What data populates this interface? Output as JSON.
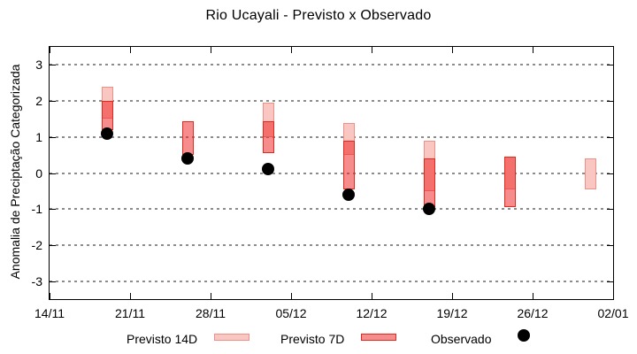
{
  "title": "Rio Ucayali - Previsto x Observado",
  "chart_data": {
    "type": "bar",
    "subtype": "floating-range-bars-with-scatter",
    "title": "Rio Ucayali - Previsto x Observado",
    "xlabel": "",
    "ylabel": "Anomalia de Preciptação Categorizada",
    "ylim": [
      -3.5,
      3.5
    ],
    "yticks": [
      3,
      2,
      1,
      0,
      -1,
      -2,
      -3
    ],
    "x_total_days": 49,
    "xticks": [
      {
        "day": 0,
        "label": "14/11"
      },
      {
        "day": 7,
        "label": "21/11"
      },
      {
        "day": 14,
        "label": "28/11"
      },
      {
        "day": 21,
        "label": "05/12"
      },
      {
        "day": 28,
        "label": "12/12"
      },
      {
        "day": 35,
        "label": "19/12"
      },
      {
        "day": 42,
        "label": "26/12"
      },
      {
        "day": 49,
        "label": "02/01"
      }
    ],
    "grid": {
      "horizontal": true,
      "style": "dotted",
      "color": "#8c8c8c"
    },
    "series": [
      {
        "name": "Previsto 14D",
        "type": "range-bar",
        "fill": "#f9c6c1",
        "border": "#ee9086",
        "points": [
          {
            "date": "19/11",
            "day": 5,
            "low": 1.5,
            "high": 2.4
          },
          {
            "date": "03/12",
            "day": 19,
            "low": 1.0,
            "high": 1.95
          },
          {
            "date": "10/12",
            "day": 26,
            "low": 0.5,
            "high": 1.4
          },
          {
            "date": "17/12",
            "day": 33,
            "low": -0.5,
            "high": 0.9
          },
          {
            "date": "24/12",
            "day": 40,
            "low": -0.45,
            "high": 0.45
          },
          {
            "date": "31/12",
            "day": 47,
            "low": -0.45,
            "high": 0.4
          }
        ]
      },
      {
        "name": "Previsto 7D",
        "type": "range-bar",
        "fill": "rgba(240,25,25,0.5)",
        "border": "#e8271c",
        "points": [
          {
            "date": "19/11",
            "day": 5,
            "low": 1.2,
            "high": 2.0
          },
          {
            "date": "26/11",
            "day": 12,
            "low": 0.5,
            "high": 1.45
          },
          {
            "date": "03/12",
            "day": 19,
            "low": 0.55,
            "high": 1.45
          },
          {
            "date": "10/12",
            "day": 26,
            "low": -0.45,
            "high": 0.9
          },
          {
            "date": "17/12",
            "day": 33,
            "low": -0.95,
            "high": 0.4
          },
          {
            "date": "24/12",
            "day": 40,
            "low": -0.95,
            "high": 0.45
          }
        ]
      },
      {
        "name": "Observado",
        "type": "scatter",
        "color": "#000000",
        "points": [
          {
            "date": "19/11",
            "day": 5,
            "value": 1.1
          },
          {
            "date": "26/11",
            "day": 12,
            "value": 0.4
          },
          {
            "date": "03/12",
            "day": 19,
            "value": 0.1
          },
          {
            "date": "10/12",
            "day": 26,
            "value": -0.6
          },
          {
            "date": "17/12",
            "day": 33,
            "value": -1.0
          }
        ]
      }
    ],
    "legend": {
      "position": "bottom",
      "items": [
        {
          "label": "Previsto 14D",
          "swatch": "light-pink-box"
        },
        {
          "label": "Previsto 7D",
          "swatch": "red-box"
        },
        {
          "label": "Observado",
          "swatch": "black-dot"
        }
      ]
    }
  }
}
